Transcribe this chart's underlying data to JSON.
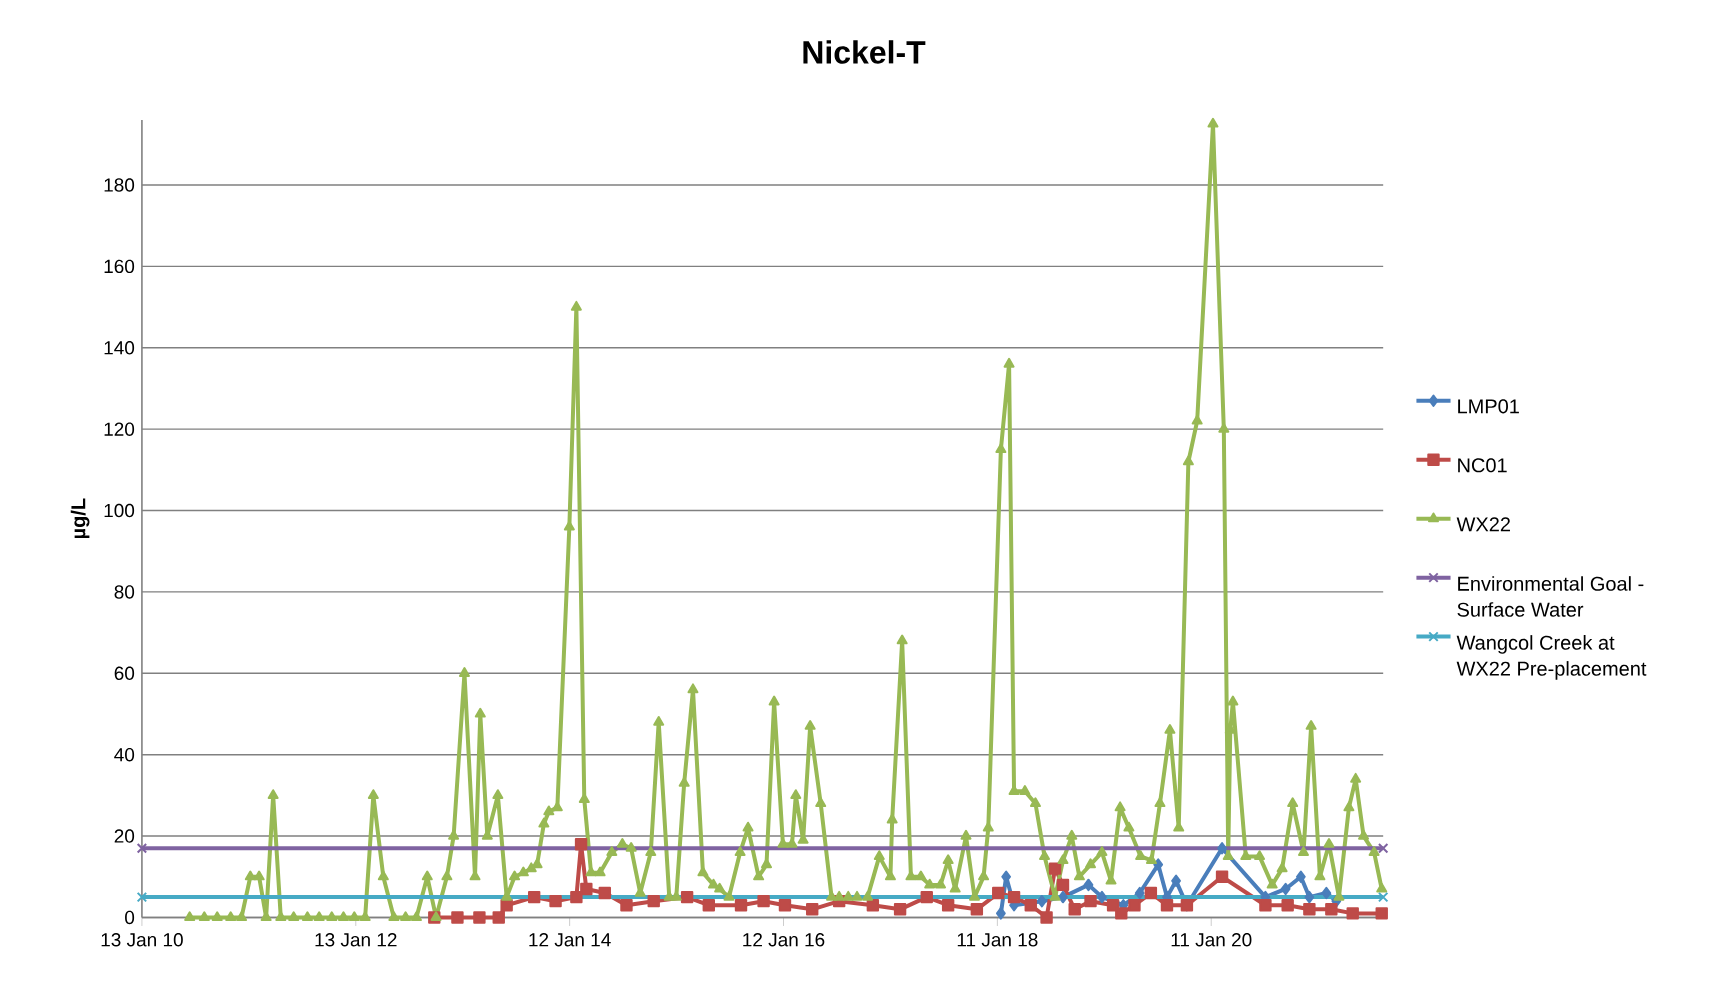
{
  "chart_data": {
    "type": "line",
    "title": "Nickel-T",
    "ylabel": "µg/L",
    "xlim": [
      "2010-01-13",
      "2021-08-20"
    ],
    "ylim": [
      0,
      196
    ],
    "xticks": [
      {
        "value": "2010-01-13",
        "label": "13 Jan 10"
      },
      {
        "value": "2012-01-13",
        "label": "13 Jan 12"
      },
      {
        "value": "2014-01-12",
        "label": "12 Jan 14"
      },
      {
        "value": "2016-01-12",
        "label": "12 Jan 16"
      },
      {
        "value": "2018-01-11",
        "label": "11 Jan 18"
      },
      {
        "value": "2020-01-11",
        "label": "11 Jan 20"
      }
    ],
    "yticks": [
      0,
      20,
      40,
      60,
      80,
      100,
      120,
      140,
      160,
      180
    ],
    "grid": "y",
    "legend": "right",
    "series": [
      {
        "name": "LMP01",
        "color": "#4a7ebb",
        "marker": "diamond",
        "x": [
          "2018-01-23",
          "2018-02-10",
          "2018-03-09",
          "2018-06-12",
          "2018-08-23",
          "2018-11-18",
          "2019-01-03",
          "2019-03-17",
          "2019-05-12",
          "2019-07-14",
          "2019-08-13",
          "2019-09-13",
          "2019-10-20",
          "2020-02-17",
          "2020-07-14",
          "2020-09-21",
          "2020-11-12",
          "2020-12-11",
          "2021-02-07",
          "2021-03-13"
        ],
        "values": [
          1,
          10,
          3,
          4,
          5,
          8,
          5,
          3,
          6,
          13,
          5,
          9,
          3,
          17,
          5,
          7,
          10,
          5,
          6,
          4
        ]
      },
      {
        "name": "NC01",
        "color": "#be4b48",
        "marker": "square",
        "x": [
          "2012-10-07",
          "2012-12-25",
          "2013-03-10",
          "2013-05-15",
          "2013-06-11",
          "2013-09-13",
          "2013-11-25",
          "2014-02-04",
          "2014-02-20",
          "2014-03-10",
          "2014-05-12",
          "2014-07-25",
          "2014-10-26",
          "2015-02-17",
          "2015-05-02",
          "2015-08-20",
          "2015-11-05",
          "2016-01-17",
          "2016-04-19",
          "2016-07-20",
          "2016-11-12",
          "2017-02-13",
          "2017-05-15",
          "2017-07-27",
          "2017-11-02",
          "2018-01-14",
          "2018-03-09",
          "2018-05-05",
          "2018-06-28",
          "2018-07-27",
          "2018-08-23",
          "2018-10-02",
          "2018-11-25",
          "2019-02-10",
          "2019-03-10",
          "2019-04-24",
          "2019-06-19",
          "2019-08-13",
          "2019-10-20",
          "2020-02-17",
          "2020-07-14",
          "2020-09-28",
          "2020-12-11",
          "2021-02-24",
          "2021-05-08",
          "2021-08-15"
        ],
        "values": [
          0,
          0,
          0,
          0,
          3,
          5,
          4,
          5,
          18,
          7,
          6,
          3,
          4,
          5,
          3,
          3,
          4,
          3,
          2,
          4,
          3,
          2,
          5,
          3,
          2,
          6,
          5,
          3,
          0,
          12,
          8,
          2,
          4,
          3,
          1,
          3,
          6,
          3,
          3,
          10,
          3,
          3,
          2,
          2,
          1,
          1
        ]
      },
      {
        "name": "WX22",
        "color": "#98b954",
        "marker": "triangle",
        "x": [
          "2010-06-25",
          "2010-08-14",
          "2010-09-27",
          "2010-11-12",
          "2010-12-19",
          "2011-01-18",
          "2011-02-17",
          "2011-03-13",
          "2011-04-06",
          "2011-05-02",
          "2011-06-15",
          "2011-08-01",
          "2011-09-10",
          "2011-10-23",
          "2011-12-02",
          "2012-01-08",
          "2012-02-14",
          "2012-03-13",
          "2012-04-16",
          "2012-05-22",
          "2012-07-01",
          "2012-08-07",
          "2012-09-13",
          "2012-10-13",
          "2012-11-19",
          "2012-12-12",
          "2013-01-18",
          "2013-02-23",
          "2013-03-13",
          "2013-04-06",
          "2013-05-12",
          "2013-06-11",
          "2013-07-08",
          "2013-08-07",
          "2013-09-03",
          "2013-09-23",
          "2013-10-16",
          "2013-11-02",
          "2013-12-01",
          "2014-01-11",
          "2014-02-04",
          "2014-03-03",
          "2014-03-26",
          "2014-04-26",
          "2014-06-05",
          "2014-07-11",
          "2014-08-10",
          "2014-09-10",
          "2014-10-16",
          "2014-11-12",
          "2014-12-18",
          "2015-01-11",
          "2015-02-07",
          "2015-03-09",
          "2015-04-12",
          "2015-05-18",
          "2015-06-08",
          "2015-07-10",
          "2015-08-17",
          "2015-09-13",
          "2015-10-19",
          "2015-11-15",
          "2015-12-11",
          "2016-01-10",
          "2016-02-10",
          "2016-02-23",
          "2016-03-19",
          "2016-04-12",
          "2016-05-18",
          "2016-06-24",
          "2016-07-20",
          "2016-08-20",
          "2016-09-19",
          "2016-10-25",
          "2016-12-04",
          "2017-01-11",
          "2017-01-17",
          "2017-02-20",
          "2017-03-22",
          "2017-04-25",
          "2017-05-25",
          "2017-07-01",
          "2017-07-27",
          "2017-08-20",
          "2017-09-26",
          "2017-10-25",
          "2017-11-25",
          "2017-12-11",
          "2018-01-23",
          "2018-02-20",
          "2018-03-09",
          "2018-04-15",
          "2018-05-21",
          "2018-06-21",
          "2018-07-27",
          "2018-08-23",
          "2018-09-22",
          "2018-10-18",
          "2018-11-25",
          "2019-01-03",
          "2019-02-03",
          "2019-03-06",
          "2019-04-05",
          "2019-05-15",
          "2019-06-21",
          "2019-07-20",
          "2019-08-23",
          "2019-09-22",
          "2019-10-25",
          "2019-11-24",
          "2020-01-17",
          "2020-02-23",
          "2020-03-09",
          "2020-03-16",
          "2020-03-25",
          "2020-05-08",
          "2020-06-24",
          "2020-08-06",
          "2020-09-09",
          "2020-10-15",
          "2020-11-21",
          "2020-12-17",
          "2021-01-16",
          "2021-02-16",
          "2021-03-22",
          "2021-04-25",
          "2021-05-18",
          "2021-06-14",
          "2021-07-20",
          "2021-08-15"
        ],
        "values": [
          0,
          0,
          0,
          0,
          0,
          10,
          10,
          0,
          30,
          0,
          0,
          0,
          0,
          0,
          0,
          0,
          0,
          30,
          10,
          0,
          0,
          0,
          10,
          0,
          10,
          20,
          60,
          10,
          50,
          20,
          30,
          5,
          10,
          11,
          12,
          13,
          23,
          26,
          27,
          96,
          150,
          29,
          11,
          11,
          16,
          18,
          17,
          6,
          16,
          48,
          5,
          5,
          33,
          56,
          11,
          8,
          7,
          5,
          16,
          22,
          10,
          13,
          53,
          18,
          18,
          30,
          19,
          47,
          28,
          5,
          5,
          5,
          5,
          5,
          15,
          10,
          24,
          68,
          10,
          10,
          8,
          8,
          14,
          7,
          20,
          5,
          10,
          22,
          115,
          136,
          31,
          31,
          28,
          15,
          5,
          14,
          20,
          10,
          13,
          16,
          9,
          27,
          22,
          15,
          14,
          28,
          46,
          22,
          112,
          122,
          195,
          120,
          15,
          46,
          53,
          15,
          15,
          8,
          12,
          28,
          16,
          47,
          10,
          18,
          5,
          27,
          34,
          20,
          16,
          7
        ]
      },
      {
        "name": "Environmental Goal - Surface Water",
        "color": "#7f63a1",
        "marker": "cross",
        "x": [
          "2010-01-13",
          "2021-08-20"
        ],
        "values": [
          17,
          17
        ]
      },
      {
        "name": "Wangcol Creek at WX22 Pre-placement",
        "color": "#46aac5",
        "marker": "cross",
        "x": [
          "2010-01-13",
          "2021-08-20"
        ],
        "values": [
          5,
          5
        ]
      }
    ]
  }
}
